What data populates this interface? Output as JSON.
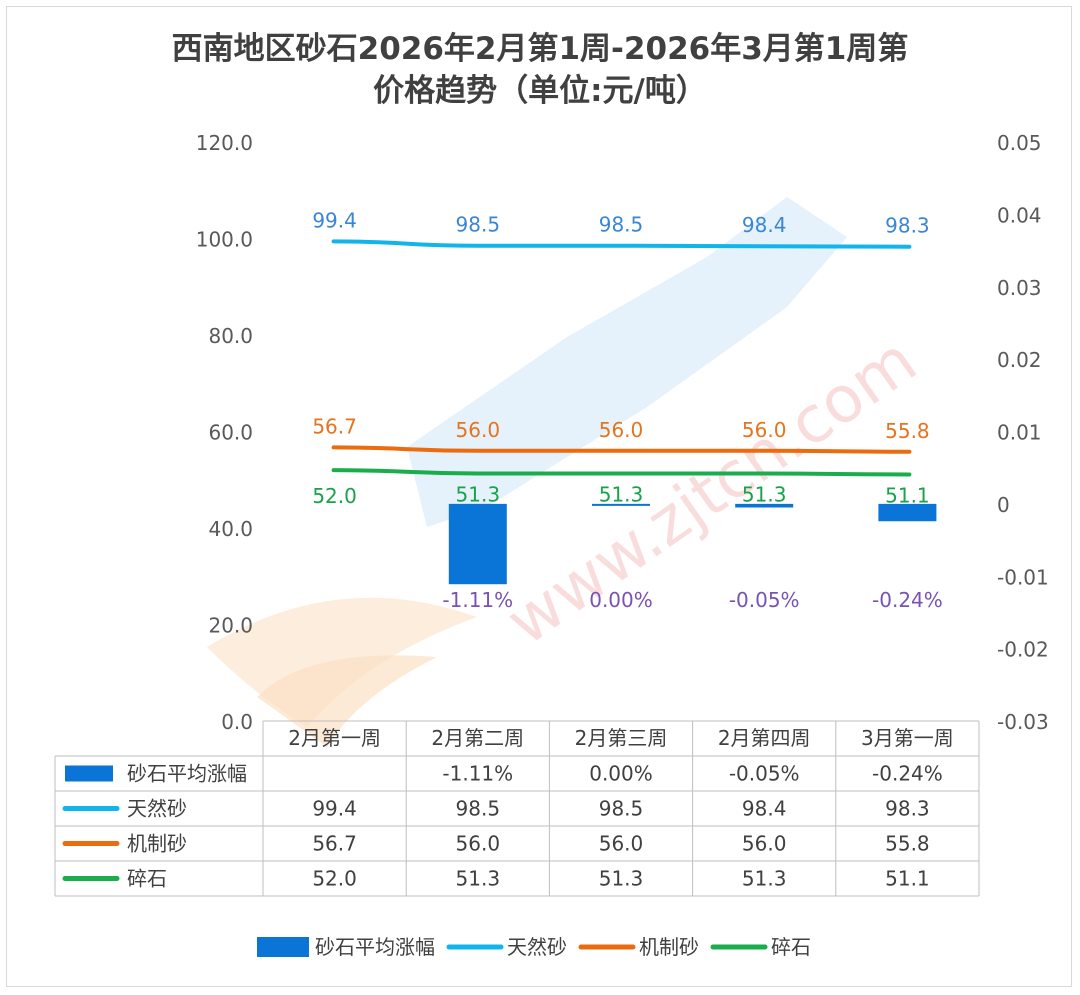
{
  "chart_data": {
    "type": "bar+line",
    "title_line1": "西南地区砂石2026年2月第1周-2026年3月第1周第",
    "title_line2": "价格趋势（单位:元/吨）",
    "categories": [
      "2月第一周",
      "2月第二周",
      "2月第三周",
      "2月第四周",
      "3月第一周"
    ],
    "y_left": {
      "min": 0,
      "max": 120,
      "ticks": [
        "0.0",
        "20.0",
        "40.0",
        "60.0",
        "80.0",
        "100.0",
        "120.0"
      ]
    },
    "y_right": {
      "min": -0.03,
      "max": 0.05,
      "ticks": [
        "-0.03",
        "-0.02",
        "-0.01",
        "0",
        "0.01",
        "0.02",
        "0.03",
        "0.04",
        "0.05"
      ]
    },
    "bar_series": {
      "name": "砂石平均涨幅",
      "axis": "right",
      "values": [
        null,
        -0.0111,
        0.0,
        -0.0005,
        -0.0024
      ],
      "labels": [
        "",
        "-1.11%",
        "0.00%",
        "-0.05%",
        "-0.24%"
      ],
      "table_labels": [
        "",
        "-1.11%",
        "0.00%",
        "-0.05%",
        "-0.24%"
      ],
      "color": "#0a75d6"
    },
    "line_series": [
      {
        "name": "天然砂",
        "values": [
          99.4,
          98.5,
          98.5,
          98.4,
          98.3
        ],
        "labels": [
          "99.4",
          "98.5",
          "98.5",
          "98.4",
          "98.3"
        ],
        "color": "#11b5ec",
        "label_color": "#3a86d4"
      },
      {
        "name": "机制砂",
        "values": [
          56.7,
          56.0,
          56.0,
          56.0,
          55.8
        ],
        "labels": [
          "56.7",
          "56.0",
          "56.0",
          "56.0",
          "55.8"
        ],
        "color": "#ec6b0f",
        "label_color": "#e6741e"
      },
      {
        "name": "碎石",
        "values": [
          52.0,
          51.3,
          51.3,
          51.3,
          51.1
        ],
        "labels": [
          "52.0",
          "51.3",
          "51.3",
          "51.3",
          "51.1"
        ],
        "color": "#1aad4b",
        "label_color": "#19a24a"
      }
    ],
    "percent_label_color": "#7a52b3",
    "legend_position": "bottom",
    "watermark_text": "www.zjtcn.com"
  }
}
